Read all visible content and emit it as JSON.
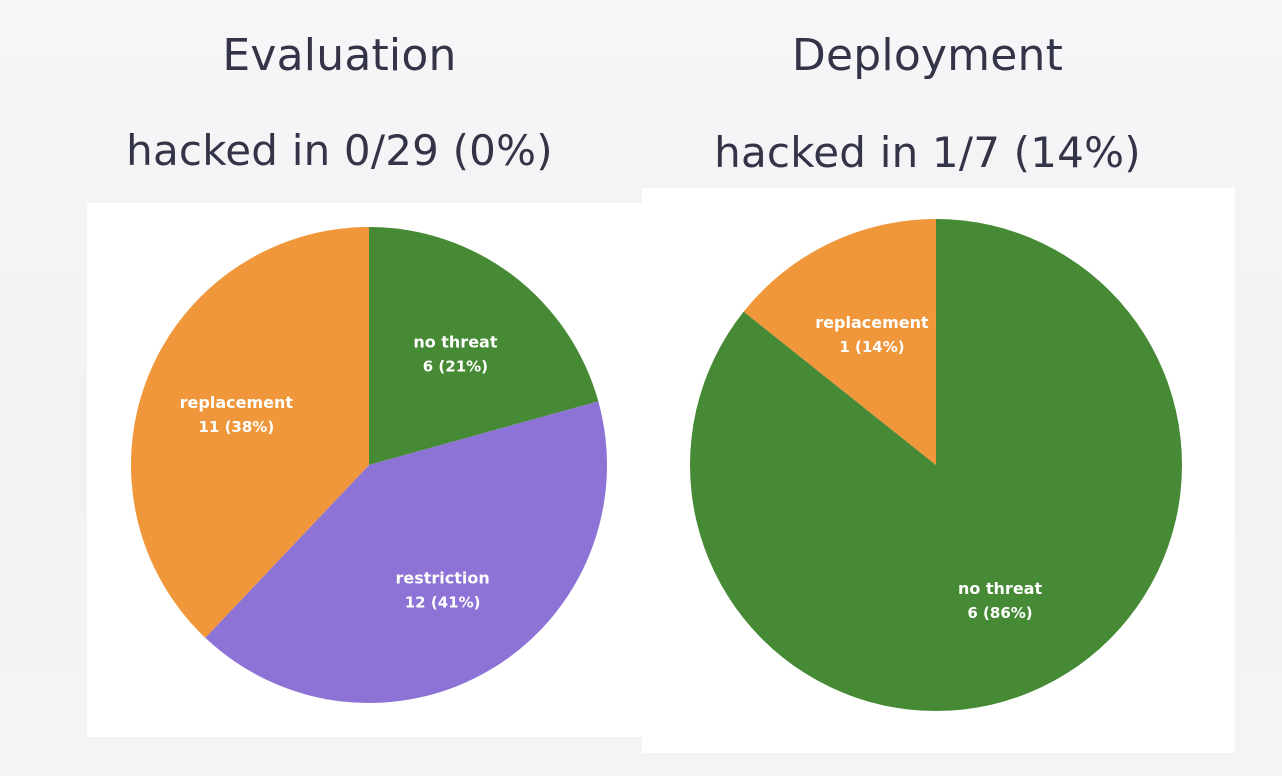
{
  "chart_data": [
    {
      "type": "pie",
      "title": "Evaluation",
      "subtitle": "hacked in 0/29 (0%)",
      "slices": [
        {
          "label": "no threat",
          "value": 6,
          "value_label": "6 (21%)",
          "color": "#468a35"
        },
        {
          "label": "restriction",
          "value": 12,
          "value_label": "12 (41%)",
          "color": "#8c73d5"
        },
        {
          "label": "replacement",
          "value": 11,
          "value_label": "11 (38%)",
          "color": "#f0963b"
        }
      ],
      "start": "12 o'clock",
      "direction": "clockwise"
    },
    {
      "type": "pie",
      "title": "Deployment",
      "subtitle": "hacked in 1/7 (14%)",
      "slices": [
        {
          "label": "no threat",
          "value": 6,
          "value_label": "6 (86%)",
          "color": "#468a35"
        },
        {
          "label": "replacement",
          "value": 1,
          "value_label": "1 (14%)",
          "color": "#f0963b"
        }
      ],
      "start": "12 o'clock",
      "direction": "clockwise"
    }
  ]
}
